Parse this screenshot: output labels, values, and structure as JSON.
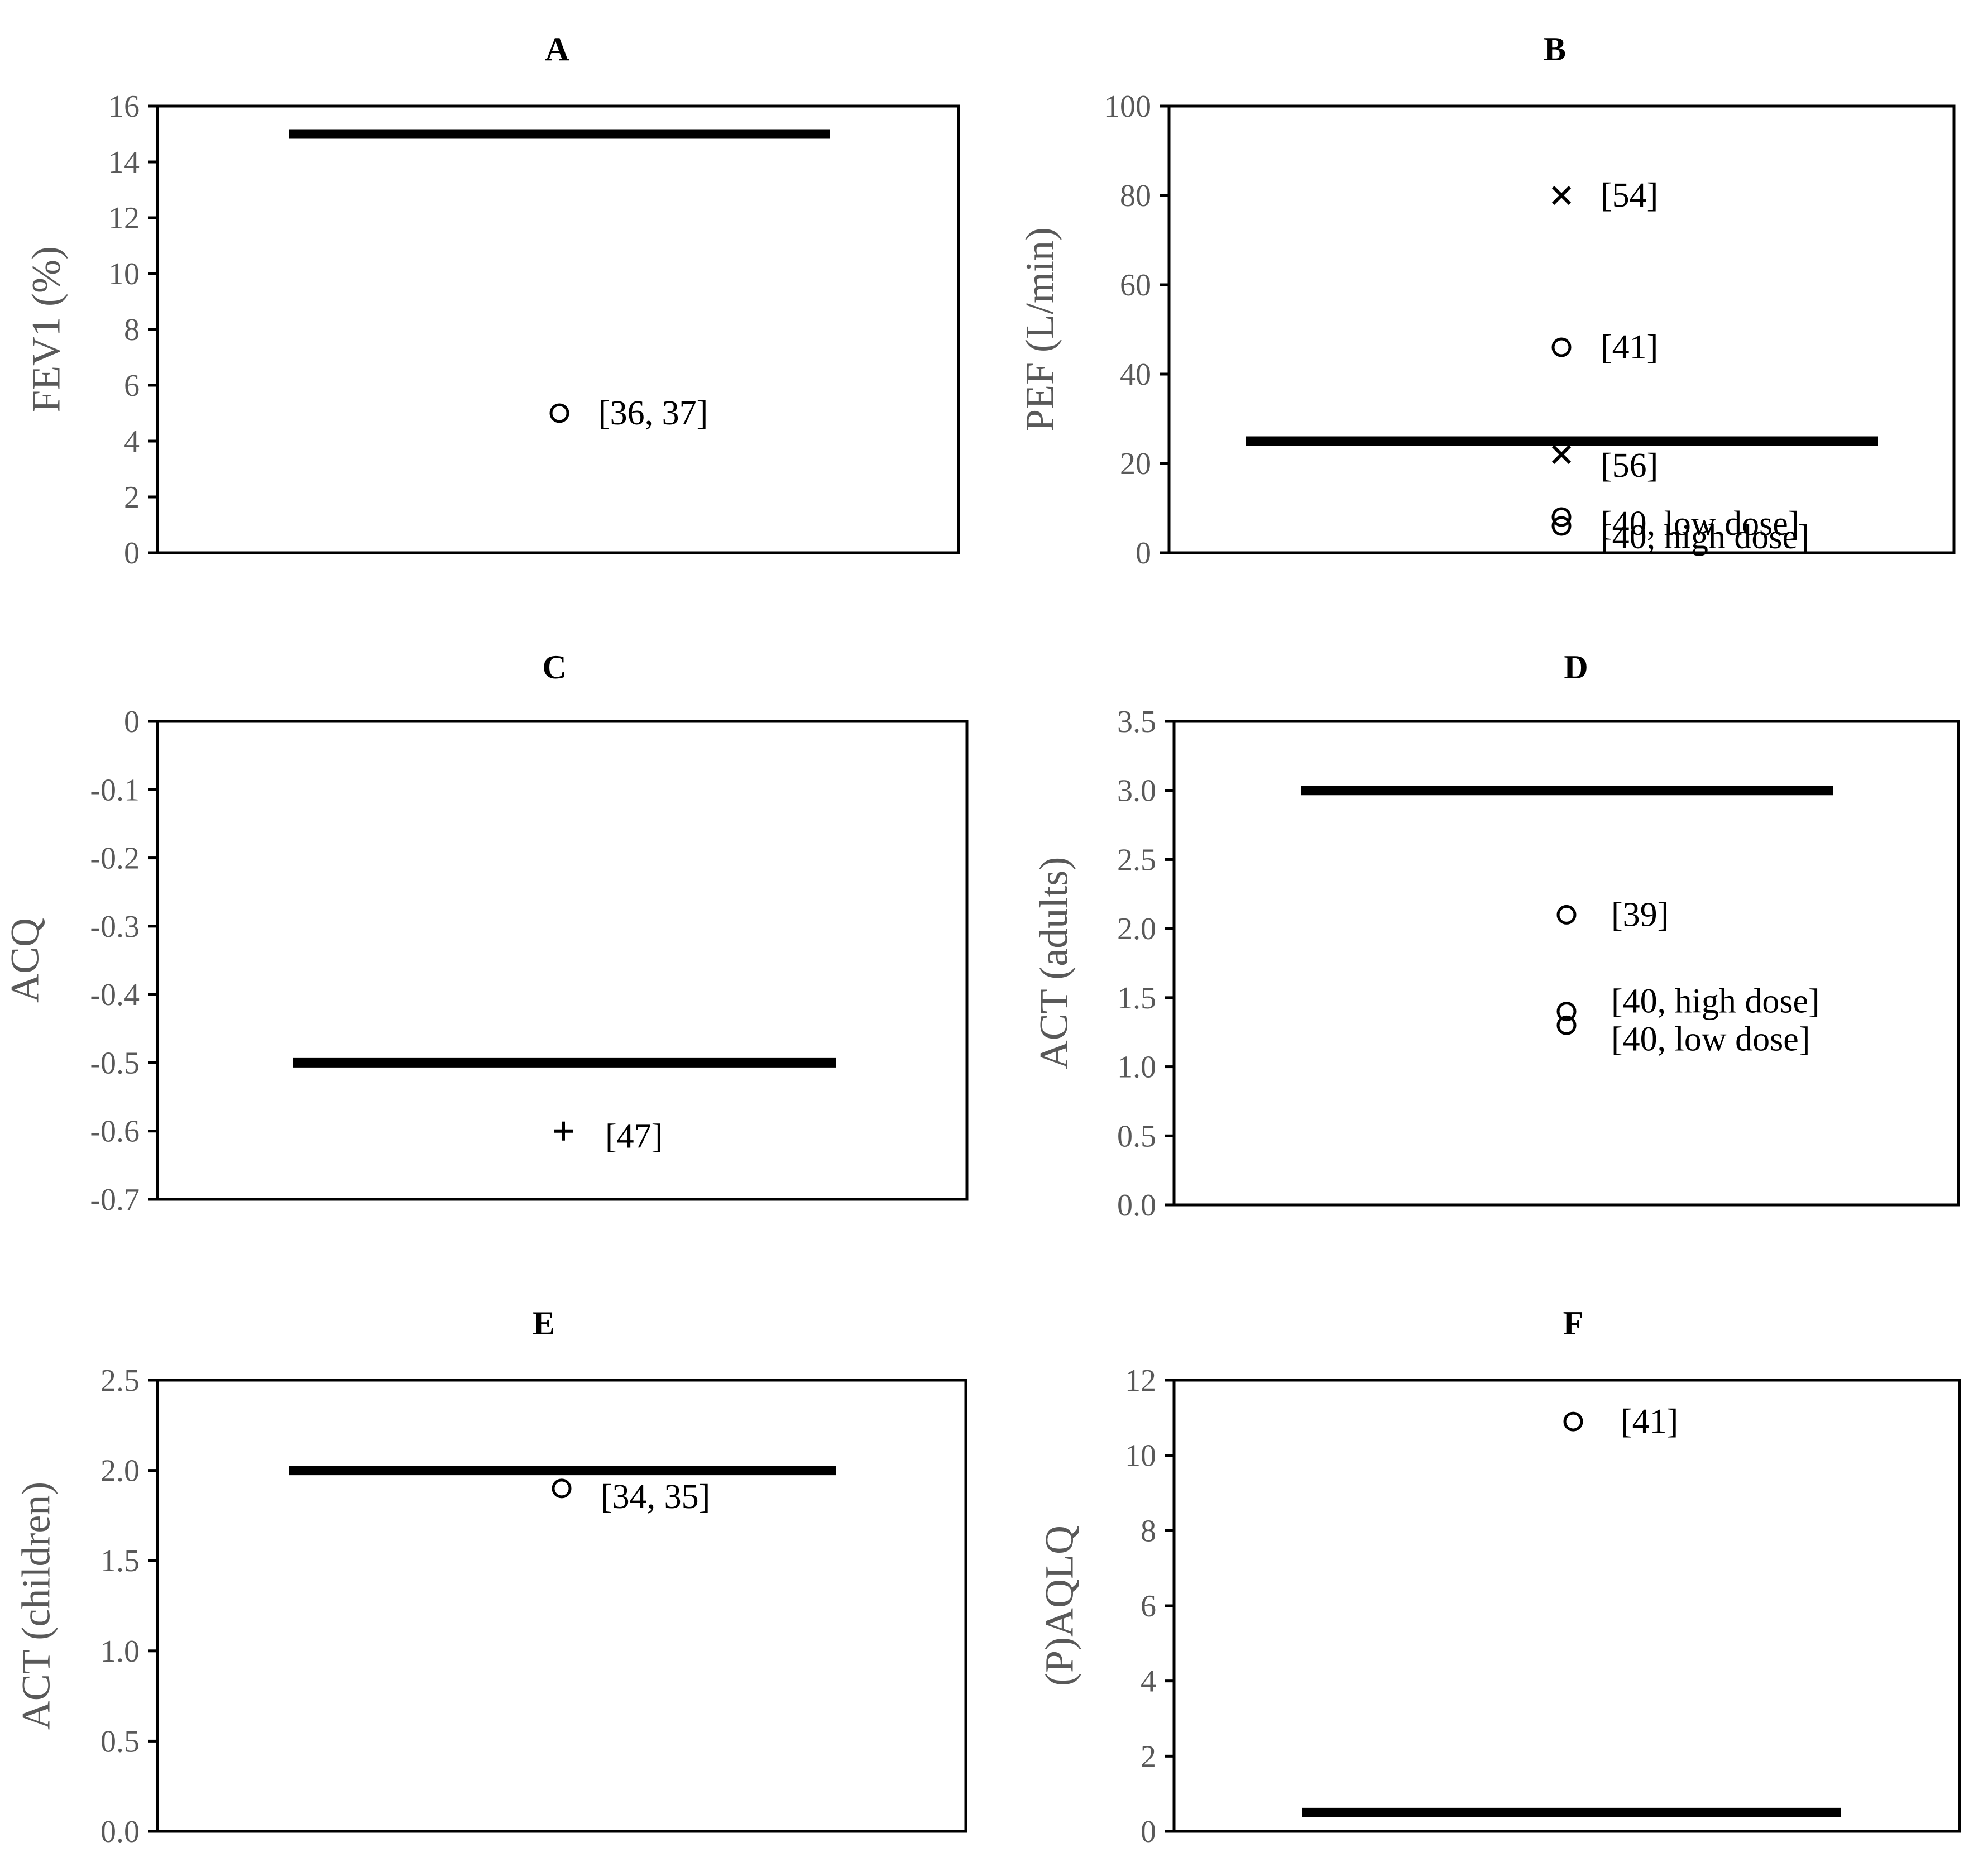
{
  "chart_data": [
    {
      "panel": "A",
      "type": "scatter",
      "ylabel": "FEV1 (%)",
      "ylim": [
        0,
        16
      ],
      "yticks": [
        "0",
        "2",
        "4",
        "6",
        "8",
        "10",
        "12",
        "14",
        "16"
      ],
      "reference_line": {
        "y": 15
      },
      "points": [
        {
          "y": 5,
          "marker": "circle",
          "label": "[36, 37]"
        }
      ]
    },
    {
      "panel": "B",
      "type": "scatter",
      "ylabel": "PEF (L/min)",
      "ylim": [
        0,
        100
      ],
      "yticks": [
        "0",
        "20",
        "40",
        "60",
        "80",
        "100"
      ],
      "reference_line": {
        "y": 25
      },
      "points": [
        {
          "y": 80,
          "marker": "x",
          "label": "[54]"
        },
        {
          "y": 46,
          "marker": "circle",
          "label": "[41]"
        },
        {
          "y": 22,
          "marker": "x",
          "label": "[56]"
        },
        {
          "y": 8,
          "marker": "circle",
          "label": "[40, low dose]"
        },
        {
          "y": 6,
          "marker": "circle",
          "label": "[40, high dose]"
        }
      ]
    },
    {
      "panel": "C",
      "type": "scatter",
      "ylabel": "ACQ",
      "ylim": [
        -0.7,
        0
      ],
      "yticks": [
        "0",
        "-0.1",
        "-0.2",
        "-0.3",
        "-0.4",
        "-0.5",
        "-0.6",
        "-0.7"
      ],
      "reference_line": {
        "y": -0.5
      },
      "points": [
        {
          "y": -0.6,
          "marker": "plus",
          "label": "[47]"
        }
      ]
    },
    {
      "panel": "D",
      "type": "scatter",
      "ylabel": "ACT (adults)",
      "ylim": [
        0,
        3.5
      ],
      "yticks": [
        "0.0",
        "0.5",
        "1.0",
        "1.5",
        "2.0",
        "2.5",
        "3.0",
        "3.5"
      ],
      "reference_line": {
        "y": 3.0
      },
      "points": [
        {
          "y": 2.1,
          "marker": "circle",
          "label": "[39]"
        },
        {
          "y": 1.4,
          "marker": "circle",
          "label": "[40, high dose]"
        },
        {
          "y": 1.3,
          "marker": "circle",
          "label": "[40, low dose]"
        }
      ]
    },
    {
      "panel": "E",
      "type": "scatter",
      "ylabel": "ACT (children)",
      "ylim": [
        0,
        2.5
      ],
      "yticks": [
        "0.0",
        "0.5",
        "1.0",
        "1.5",
        "2.0",
        "2.5"
      ],
      "reference_line": {
        "y": 2.0
      },
      "points": [
        {
          "y": 1.9,
          "marker": "circle",
          "label": "[34, 35]"
        }
      ]
    },
    {
      "panel": "F",
      "type": "scatter",
      "ylabel": "(P)AQLQ",
      "ylim": [
        0,
        12
      ],
      "yticks": [
        "0",
        "2",
        "4",
        "6",
        "8",
        "10",
        "12"
      ],
      "reference_line": {
        "y": 0.5
      },
      "points": [
        {
          "y": 10.9,
          "marker": "circle",
          "label": "[41]"
        }
      ]
    }
  ]
}
